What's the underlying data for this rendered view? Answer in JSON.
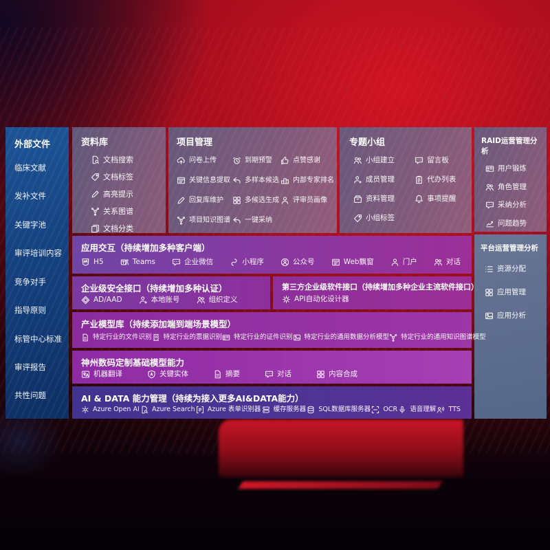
{
  "colors": {
    "background_red": "#a60e1e",
    "sidebar_blue": "#14407d",
    "panel_mauve": "#7d6f92",
    "panel_slate": "#5d7394",
    "band_purple": "#8d2f9c",
    "band_indigo": "#4a3a92",
    "text": "#ffffff"
  },
  "left_sidebar": {
    "title": "外部文件",
    "items": [
      "临床文献",
      "发补文件",
      "关键字池",
      "审评培训内容",
      "竞争对手",
      "指导原则",
      "标管中心标准",
      "审评报告",
      "共性问题"
    ]
  },
  "repository": {
    "title": "资料库",
    "items": [
      {
        "icon": "doc-search",
        "label": "文档搜索"
      },
      {
        "icon": "tag",
        "label": "文档标签"
      },
      {
        "icon": "pen",
        "label": "高亮提示"
      },
      {
        "icon": "network",
        "label": "关系图谱"
      },
      {
        "icon": "docs",
        "label": "文档分类"
      }
    ]
  },
  "project": {
    "title": "项目管理",
    "items": [
      {
        "icon": "cloud-upload",
        "label": "问卷上传"
      },
      {
        "icon": "alarm",
        "label": "到期预警"
      },
      {
        "icon": "thumb-up",
        "label": "点赞感谢"
      },
      {
        "icon": "window",
        "label": "关键信息提取"
      },
      {
        "icon": "reply",
        "label": "多样本候选"
      },
      {
        "icon": "podium",
        "label": "内部专家排名"
      },
      {
        "icon": "pen",
        "label": "回复库维护"
      },
      {
        "icon": "grid",
        "label": "多候选生成"
      },
      {
        "icon": "person",
        "label": "评审员画像"
      },
      {
        "icon": "network",
        "label": "项目知识图谱"
      },
      {
        "icon": "reply",
        "label": "一键采纳"
      }
    ]
  },
  "topic_group": {
    "title": "专题小组",
    "items": [
      {
        "icon": "people",
        "label": "小组建立"
      },
      {
        "icon": "chat",
        "label": "留言板"
      },
      {
        "icon": "person-add",
        "label": "成员管理"
      },
      {
        "icon": "clipboard",
        "label": "代办列表"
      },
      {
        "icon": "archive",
        "label": "资料管理"
      },
      {
        "icon": "bell",
        "label": "事项提醒"
      },
      {
        "icon": "tag",
        "label": "小组标签"
      }
    ]
  },
  "raid": {
    "title": "RAID运营管理分析",
    "items": [
      {
        "icon": "card",
        "label": "用户锻炼"
      },
      {
        "icon": "people",
        "label": "角色管理"
      },
      {
        "icon": "chat",
        "label": "采纳分析"
      },
      {
        "icon": "chart",
        "label": "问题趋势"
      }
    ]
  },
  "platform": {
    "title": "平台运营管理分析",
    "items": [
      {
        "icon": "list",
        "label": "资源分配"
      },
      {
        "icon": "grid",
        "label": "应用管理"
      },
      {
        "icon": "image",
        "label": "应用分析"
      }
    ]
  },
  "interaction": {
    "title": "应用交互（持续增加多种客户端）",
    "items": [
      {
        "icon": "h5",
        "label": "H5"
      },
      {
        "icon": "teams",
        "label": "Teams"
      },
      {
        "icon": "chat",
        "label": "企业微信"
      },
      {
        "icon": "scurve",
        "label": "小程序"
      },
      {
        "icon": "person-circle",
        "label": "公众号"
      },
      {
        "icon": "window",
        "label": "Web飘窗"
      },
      {
        "icon": "person",
        "label": "门户"
      },
      {
        "icon": "people",
        "label": "对话"
      }
    ]
  },
  "security": {
    "title": "企业级安全接口（持续增加多种认证）",
    "items": [
      {
        "icon": "diamond",
        "label": "AD/AAD"
      },
      {
        "icon": "person-add",
        "label": "本地账号"
      },
      {
        "icon": "people",
        "label": "组织定义"
      }
    ]
  },
  "third_party": {
    "title": "第三方企业级软件接口（持续增加多种企业主流软件接口）",
    "items": [
      {
        "icon": "gear",
        "label": "API自动化设计器"
      }
    ]
  },
  "industry_models": {
    "title": "产业模型库（持续添加端到端场景模型）",
    "items": [
      {
        "icon": "doc",
        "label": "特定行业的文件识别"
      },
      {
        "icon": "receipt",
        "label": "特定行业的票据识别"
      },
      {
        "icon": "card",
        "label": "特定行业的证件识别"
      },
      {
        "icon": "image",
        "label": "特定行业的通用数据分析模型"
      },
      {
        "icon": "network",
        "label": "特定行业的通用知识图谱模型"
      }
    ]
  },
  "base_models": {
    "title": "神州数码定制基础模型能力",
    "items": [
      {
        "icon": "translate",
        "label": "机器翻译"
      },
      {
        "icon": "shield-a",
        "label": "关键实体"
      },
      {
        "icon": "doc",
        "label": "摘要"
      },
      {
        "icon": "chat",
        "label": "对话"
      },
      {
        "icon": "grid",
        "label": "内容合成"
      }
    ]
  },
  "ai_data": {
    "title": "AI & DATA 能力管理（持续为接入更多AI&DATA能力）",
    "items": [
      {
        "icon": "openai",
        "label": "Azure Open AI"
      },
      {
        "icon": "doc-search",
        "label": "Azure Search"
      },
      {
        "icon": "form",
        "label": "Azure 表单识别器"
      },
      {
        "icon": "server",
        "label": "缓存服务器"
      },
      {
        "icon": "db",
        "label": "SQL数据库服务器"
      },
      {
        "icon": "ocr",
        "label": "OCR"
      },
      {
        "icon": "mic",
        "label": "语音理解"
      },
      {
        "icon": "tts",
        "label": "TTS"
      }
    ]
  }
}
